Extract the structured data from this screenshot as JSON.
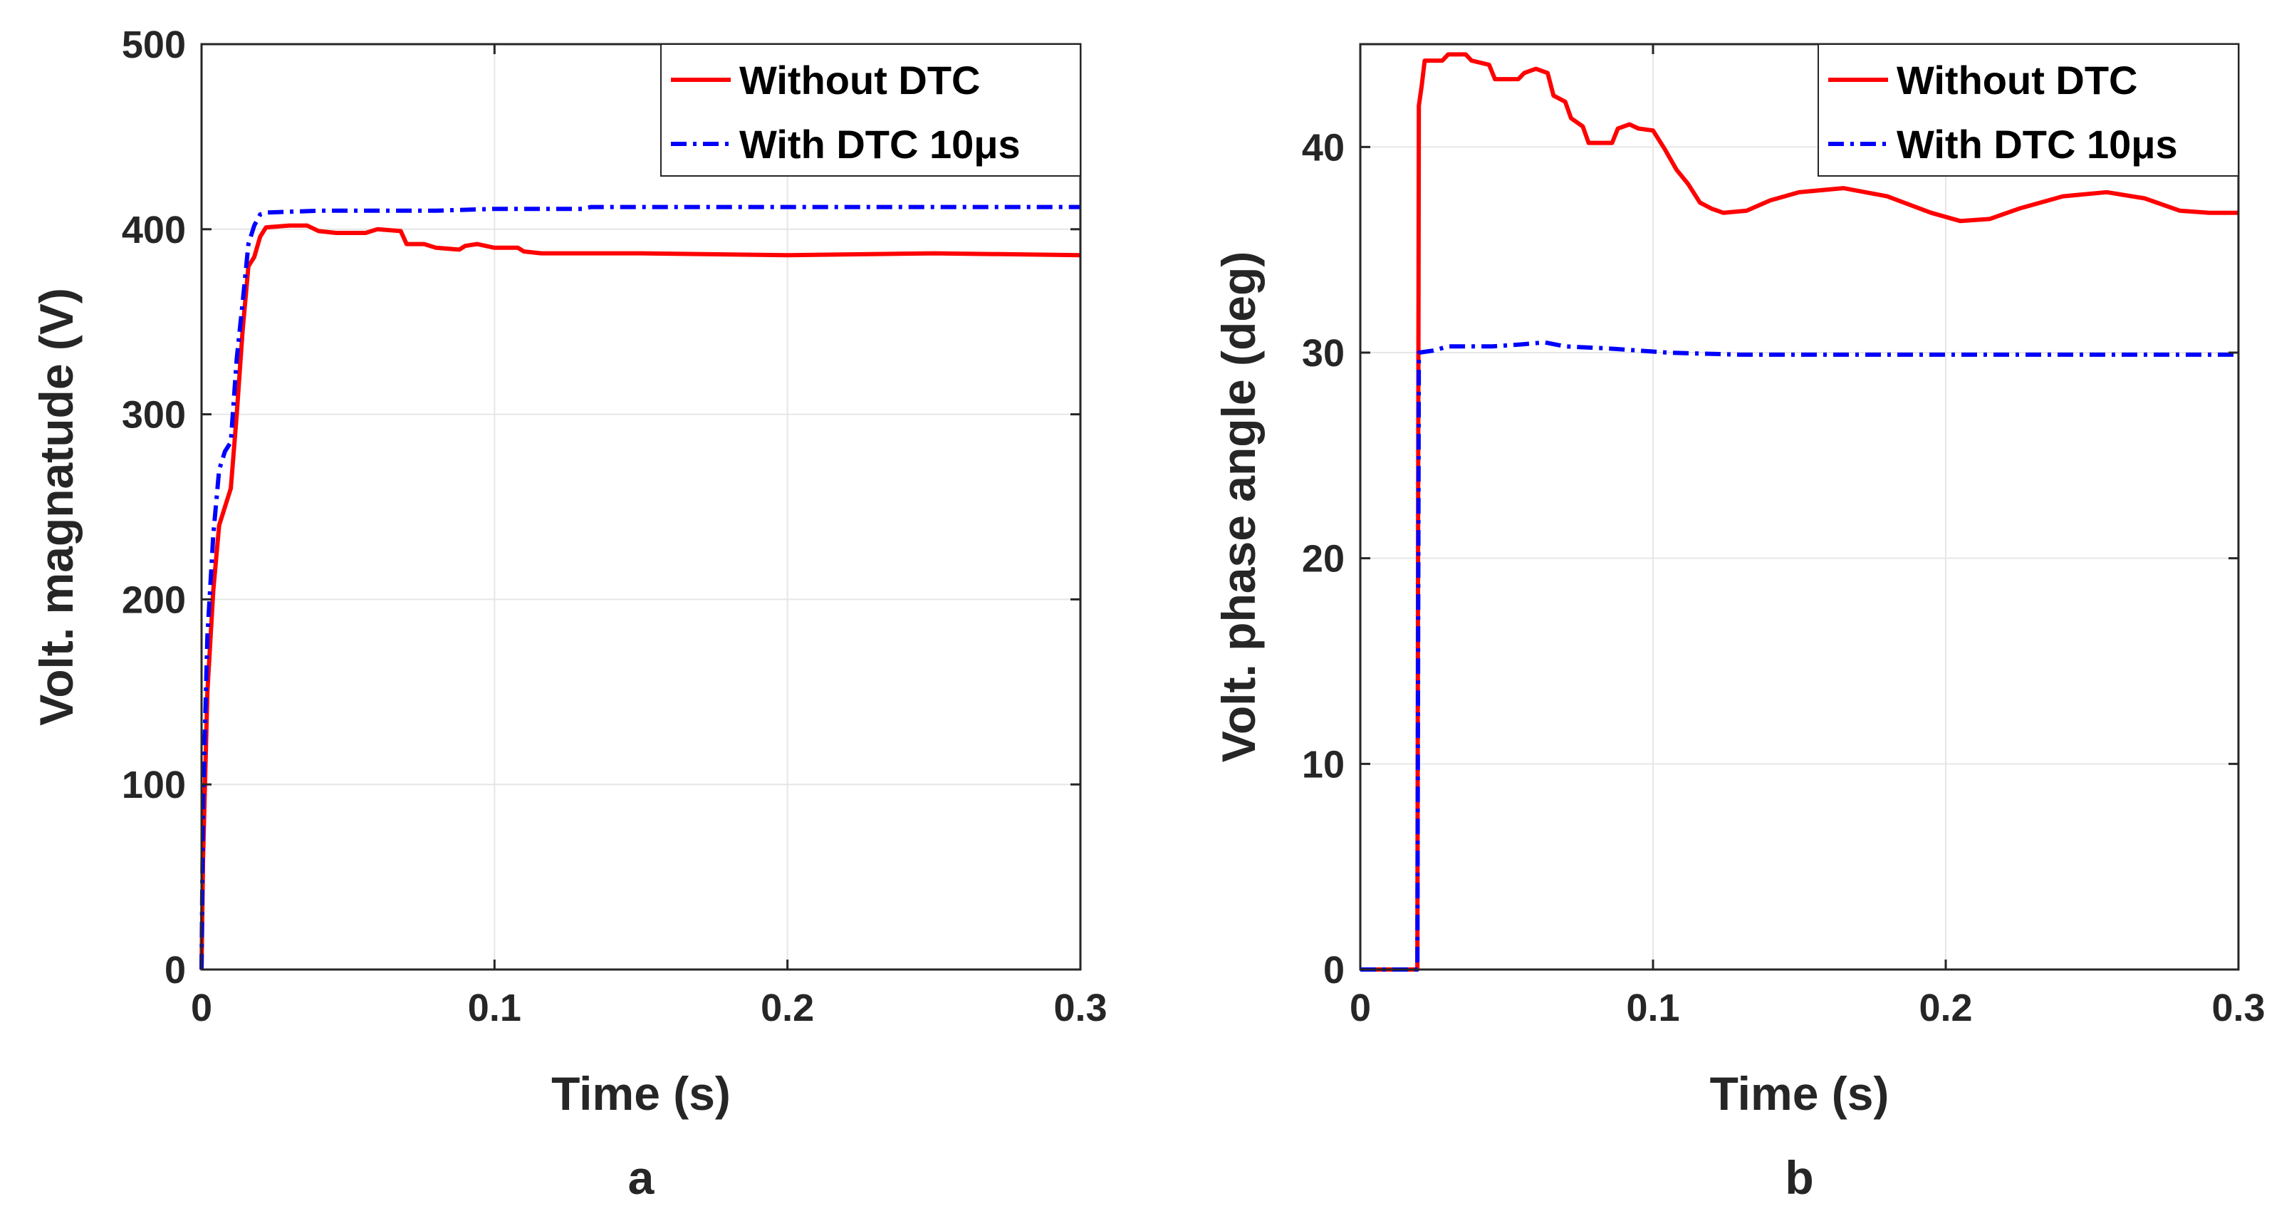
{
  "chart_data": [
    {
      "type": "line",
      "panel_label": "a",
      "xlabel": "Time (s)",
      "ylabel": "Volt. magnatude (V)",
      "xlim": [
        0,
        0.3
      ],
      "ylim": [
        0,
        500
      ],
      "xticks": [
        0,
        0.1,
        0.2,
        0.3
      ],
      "xtick_labels": [
        "0",
        "0.1",
        "0.2",
        "0.3"
      ],
      "yticks": [
        0,
        100,
        200,
        300,
        400,
        500
      ],
      "ytick_labels": [
        "0",
        "100",
        "200",
        "300",
        "400",
        "500"
      ],
      "grid": true,
      "legend_position": "top-right",
      "series": [
        {
          "name": "Without DTC",
          "color": "#ff0000",
          "style": "solid",
          "points": [
            [
              0,
              0
            ],
            [
              0.0005,
              60
            ],
            [
              0.002,
              150
            ],
            [
              0.004,
              205
            ],
            [
              0.006,
              240
            ],
            [
              0.008,
              250
            ],
            [
              0.01,
              260
            ],
            [
              0.012,
              300
            ],
            [
              0.014,
              345
            ],
            [
              0.016,
              380
            ],
            [
              0.018,
              385
            ],
            [
              0.02,
              396
            ],
            [
              0.022,
              401
            ],
            [
              0.03,
              402
            ],
            [
              0.036,
              402
            ],
            [
              0.04,
              399
            ],
            [
              0.046,
              398
            ],
            [
              0.056,
              398
            ],
            [
              0.06,
              400
            ],
            [
              0.068,
              399
            ],
            [
              0.07,
              392
            ],
            [
              0.076,
              392
            ],
            [
              0.08,
              390
            ],
            [
              0.088,
              389
            ],
            [
              0.09,
              391
            ],
            [
              0.094,
              392
            ],
            [
              0.1,
              390
            ],
            [
              0.108,
              390
            ],
            [
              0.11,
              388
            ],
            [
              0.116,
              387
            ],
            [
              0.15,
              387
            ],
            [
              0.2,
              386
            ],
            [
              0.25,
              387
            ],
            [
              0.3,
              386
            ]
          ]
        },
        {
          "name": "With DTC 10μs",
          "color": "#0000ff",
          "style": "dashdot",
          "points": [
            [
              0,
              0
            ],
            [
              0.0005,
              90
            ],
            [
              0.002,
              180
            ],
            [
              0.004,
              235
            ],
            [
              0.006,
              270
            ],
            [
              0.008,
              280
            ],
            [
              0.01,
              285
            ],
            [
              0.012,
              330
            ],
            [
              0.014,
              360
            ],
            [
              0.016,
              392
            ],
            [
              0.018,
              402
            ],
            [
              0.02,
              408
            ],
            [
              0.022,
              409
            ],
            [
              0.04,
              410
            ],
            [
              0.08,
              410
            ],
            [
              0.1,
              411
            ],
            [
              0.13,
              411
            ],
            [
              0.133,
              412
            ],
            [
              0.2,
              412
            ],
            [
              0.3,
              412
            ]
          ]
        }
      ]
    },
    {
      "type": "line",
      "panel_label": "b",
      "xlabel": "Time (s)",
      "ylabel": "Volt. phase angle (deg)",
      "xlim": [
        0,
        0.3
      ],
      "ylim": [
        0,
        45
      ],
      "xticks": [
        0,
        0.1,
        0.2,
        0.3
      ],
      "xtick_labels": [
        "0",
        "0.1",
        "0.2",
        "0.3"
      ],
      "yticks": [
        0,
        10,
        20,
        30,
        40
      ],
      "ytick_labels": [
        "0",
        "10",
        "20",
        "30",
        "40"
      ],
      "grid": true,
      "legend_position": "top-right",
      "series": [
        {
          "name": "Without DTC",
          "color": "#ff0000",
          "style": "solid",
          "points": [
            [
              0,
              0
            ],
            [
              0.019,
              0
            ],
            [
              0.0195,
              0
            ],
            [
              0.02,
              42
            ],
            [
              0.021,
              43
            ],
            [
              0.022,
              44.2
            ],
            [
              0.028,
              44.2
            ],
            [
              0.03,
              44.5
            ],
            [
              0.036,
              44.5
            ],
            [
              0.038,
              44.2
            ],
            [
              0.044,
              44.0
            ],
            [
              0.046,
              43.3
            ],
            [
              0.054,
              43.3
            ],
            [
              0.056,
              43.6
            ],
            [
              0.06,
              43.8
            ],
            [
              0.064,
              43.6
            ],
            [
              0.066,
              42.5
            ],
            [
              0.07,
              42.2
            ],
            [
              0.072,
              41.4
            ],
            [
              0.076,
              41.0
            ],
            [
              0.078,
              40.2
            ],
            [
              0.086,
              40.2
            ],
            [
              0.088,
              40.9
            ],
            [
              0.092,
              41.1
            ],
            [
              0.095,
              40.9
            ],
            [
              0.1,
              40.8
            ],
            [
              0.104,
              39.9
            ],
            [
              0.108,
              38.9
            ],
            [
              0.112,
              38.2
            ],
            [
              0.116,
              37.3
            ],
            [
              0.12,
              37.0
            ],
            [
              0.124,
              36.8
            ],
            [
              0.132,
              36.9
            ],
            [
              0.14,
              37.4
            ],
            [
              0.15,
              37.8
            ],
            [
              0.165,
              38.0
            ],
            [
              0.18,
              37.6
            ],
            [
              0.195,
              36.8
            ],
            [
              0.205,
              36.4
            ],
            [
              0.215,
              36.5
            ],
            [
              0.225,
              37.0
            ],
            [
              0.24,
              37.6
            ],
            [
              0.255,
              37.8
            ],
            [
              0.268,
              37.5
            ],
            [
              0.28,
              36.9
            ],
            [
              0.29,
              36.8
            ],
            [
              0.3,
              36.8
            ]
          ]
        },
        {
          "name": "With DTC 10μs",
          "color": "#0000ff",
          "style": "dashdot",
          "points": [
            [
              0,
              0
            ],
            [
              0.0195,
              0
            ],
            [
              0.02,
              30
            ],
            [
              0.025,
              30.1
            ],
            [
              0.03,
              30.3
            ],
            [
              0.045,
              30.3
            ],
            [
              0.055,
              30.4
            ],
            [
              0.063,
              30.5
            ],
            [
              0.07,
              30.3
            ],
            [
              0.085,
              30.2
            ],
            [
              0.095,
              30.1
            ],
            [
              0.105,
              30.0
            ],
            [
              0.13,
              29.9
            ],
            [
              0.15,
              29.9
            ],
            [
              0.3,
              29.9
            ]
          ]
        }
      ]
    }
  ]
}
